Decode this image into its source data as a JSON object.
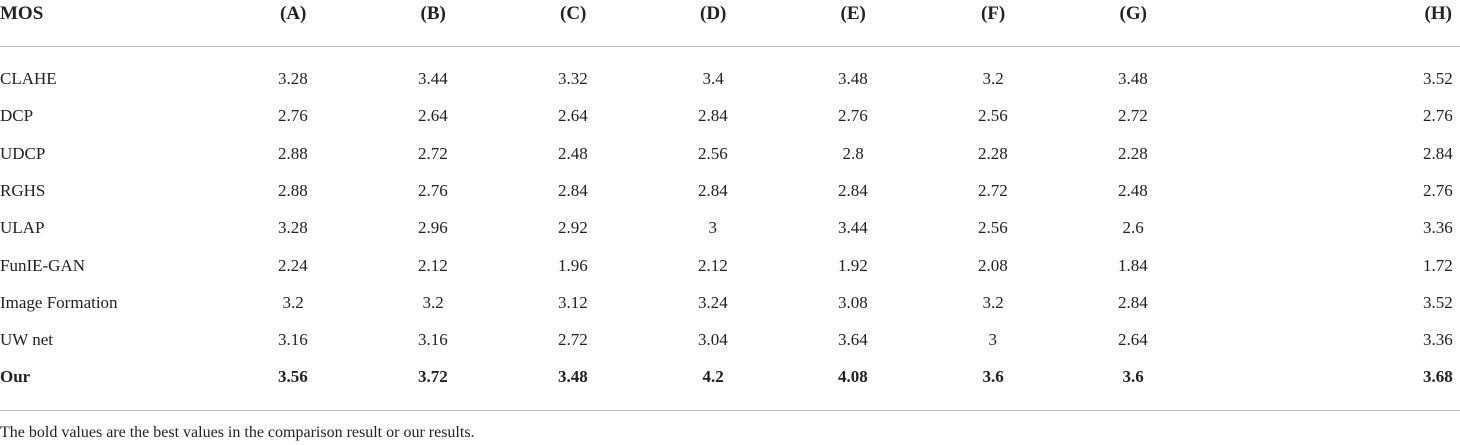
{
  "table": {
    "header": [
      "MOS",
      "(A)",
      "(B)",
      "(C)",
      "(D)",
      "(E)",
      "(F)",
      "(G)",
      "(H)"
    ],
    "rows": [
      [
        "CLAHE",
        "3.28",
        "3.44",
        "3.32",
        "3.4",
        "3.48",
        "3.2",
        "3.48",
        "3.52"
      ],
      [
        "DCP",
        "2.76",
        "2.64",
        "2.64",
        "2.84",
        "2.76",
        "2.56",
        "2.72",
        "2.76"
      ],
      [
        "UDCP",
        "2.88",
        "2.72",
        "2.48",
        "2.56",
        "2.8",
        "2.28",
        "2.28",
        "2.84"
      ],
      [
        "RGHS",
        "2.88",
        "2.76",
        "2.84",
        "2.84",
        "2.84",
        "2.72",
        "2.48",
        "2.76"
      ],
      [
        "ULAP",
        "3.28",
        "2.96",
        "2.92",
        "3",
        "3.44",
        "2.56",
        "2.6",
        "3.36"
      ],
      [
        "FunIE-GAN",
        "2.24",
        "2.12",
        "1.96",
        "2.12",
        "1.92",
        "2.08",
        "1.84",
        "1.72"
      ],
      [
        "Image Formation",
        "3.2",
        "3.2",
        "3.12",
        "3.24",
        "3.08",
        "3.2",
        "2.84",
        "3.52"
      ],
      [
        "UW net",
        "3.16",
        "3.16",
        "2.72",
        "3.04",
        "3.64",
        "3",
        "2.64",
        "3.36"
      ],
      [
        "Our",
        "3.56",
        "3.72",
        "3.48",
        "4.2",
        "4.08",
        "3.6",
        "3.6",
        "3.68"
      ]
    ],
    "bold_last_row": true,
    "footnote": "The bold values are the best values in the comparison result or our results."
  }
}
